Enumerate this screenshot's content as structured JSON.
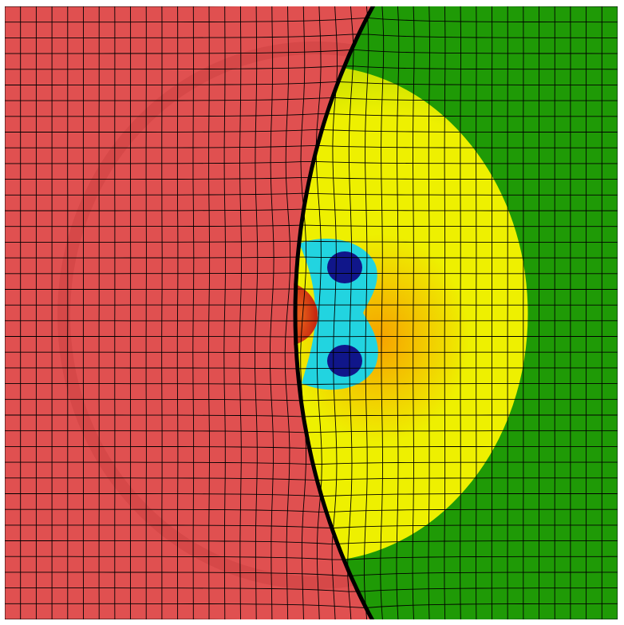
{
  "figure": {
    "description_free": true,
    "colors": {
      "background": "#ffffff",
      "left_region": "#e05050",
      "left_region_dark": "#c23a3a",
      "right_region": "#1f9a06",
      "disk_outer": "#b6d800",
      "disk_mid": "#eef000",
      "disk_core": "#f6a300",
      "cyan": "#22d4e0",
      "deep_blue": "#10168a",
      "mesh_line": "#000000",
      "interface_line": "#000000",
      "orange_spot": "#e8601a"
    },
    "mesh": {
      "columns_visible": 39,
      "rows_visible": 39
    }
  }
}
